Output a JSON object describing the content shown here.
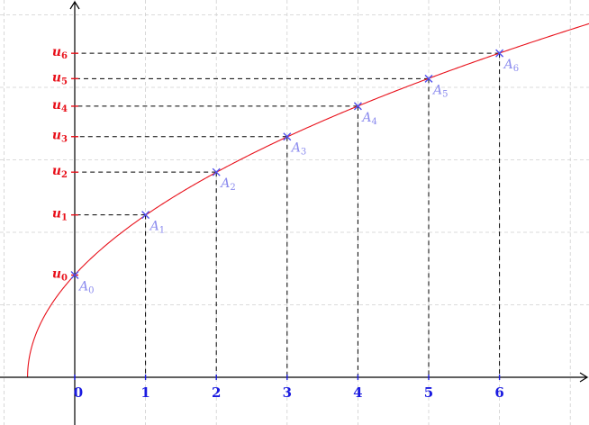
{
  "chart_data": {
    "type": "line",
    "function_note": "",
    "xlim": [
      -1,
      7.3
    ],
    "ylim": [
      -0.6,
      4.9
    ],
    "grid": true,
    "curve_color": "#e8101a",
    "x_axis_color": "#1a1ae0",
    "y_axis_color": "#e8101a",
    "point_color": "#8a8aee",
    "x_ticks": [
      "0",
      "1",
      "2",
      "3",
      "4",
      "5",
      "6"
    ],
    "points": [
      {
        "n": 0,
        "x": 0,
        "y": 1.41,
        "label": "A",
        "sub": "0",
        "ulabel": "u",
        "usub": "0"
      },
      {
        "n": 1,
        "x": 1,
        "y": 2.24,
        "label": "A",
        "sub": "1",
        "ulabel": "u",
        "usub": "1"
      },
      {
        "n": 2,
        "x": 2,
        "y": 2.83,
        "label": "A",
        "sub": "2",
        "ulabel": "u",
        "usub": "2"
      },
      {
        "n": 3,
        "x": 3,
        "y": 3.32,
        "label": "A",
        "sub": "3",
        "ulabel": "u",
        "usub": "3"
      },
      {
        "n": 4,
        "x": 4,
        "y": 3.74,
        "label": "A",
        "sub": "4",
        "ulabel": "u",
        "usub": "4"
      },
      {
        "n": 5,
        "x": 5,
        "y": 4.12,
        "label": "A",
        "sub": "5",
        "ulabel": "u",
        "usub": "5"
      },
      {
        "n": 6,
        "x": 6,
        "y": 4.47,
        "label": "A",
        "sub": "6",
        "ulabel": "u",
        "usub": "6"
      }
    ]
  }
}
